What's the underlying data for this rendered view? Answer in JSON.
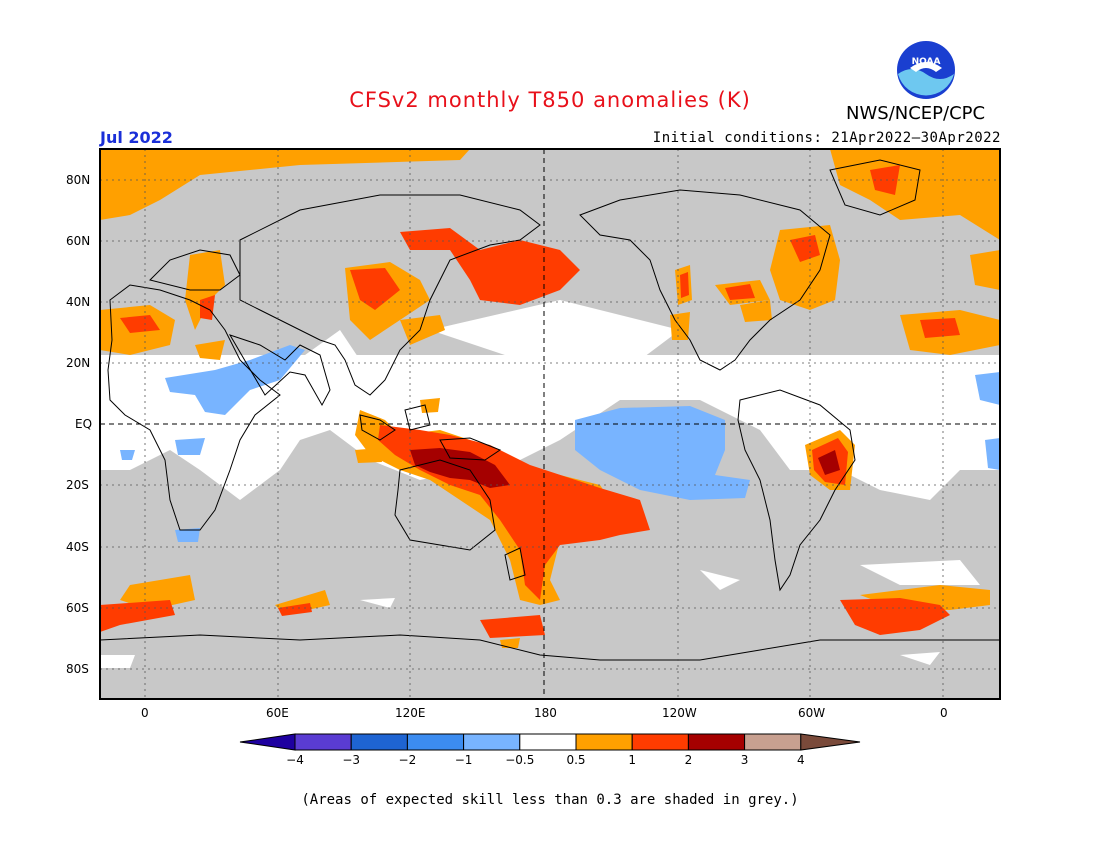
{
  "title": "CFSv2 monthly T850 anomalies (K)",
  "target_month": "Jul 2022",
  "initial_conditions": "Initial conditions: 21Apr2022–30Apr2022",
  "agency": "NWS/NCEP/CPC",
  "logo_text": "NOAA",
  "footnote": "(Areas of expected skill less than 0.3 are shaded in grey.)",
  "map": {
    "lat_labels": [
      "80N",
      "60N",
      "40N",
      "20N",
      "EQ",
      "20S",
      "40S",
      "60S",
      "80S"
    ],
    "lon_labels": [
      "0",
      "60E",
      "120E",
      "180",
      "120W",
      "60W",
      "0"
    ],
    "colors": {
      "grey_low_skill": "#c8c8c8",
      "neutral": "#ffffff",
      "pos_0_5_1": "#ffa000",
      "pos_1_2": "#ff3c00",
      "pos_2_3": "#a50000",
      "neg_0_5_1": "#78b4ff"
    }
  },
  "legend": {
    "ticks": [
      "−4",
      "−3",
      "−2",
      "−1",
      "−0.5",
      "0.5",
      "1",
      "2",
      "3",
      "4"
    ],
    "colors": [
      "#1e00a0",
      "#5a3cd2",
      "#1e64d2",
      "#3c8cf0",
      "#78b4ff",
      "#ffffff",
      "#ffa000",
      "#ff3c00",
      "#a50000",
      "#c8a090",
      "#7a4a3a"
    ]
  }
}
